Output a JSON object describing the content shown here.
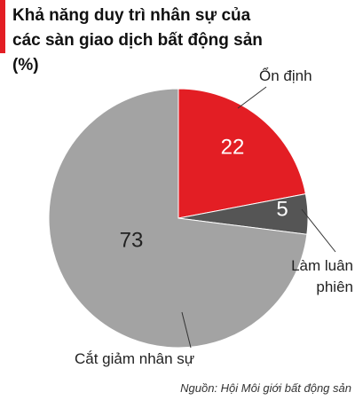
{
  "chart_data": {
    "type": "pie",
    "title": "Khả năng duy trì nhân sự của các sàn giao dịch bất động sản (%)",
    "categories": [
      "Ổn định",
      "Làm luân phiên",
      "Cắt giảm nhân sự"
    ],
    "values": [
      22,
      5,
      73
    ],
    "colors": [
      "#e31e24",
      "#555555",
      "#a3a3a3"
    ],
    "source": "Nguồn: Hội Môi giới bất động sản"
  }
}
